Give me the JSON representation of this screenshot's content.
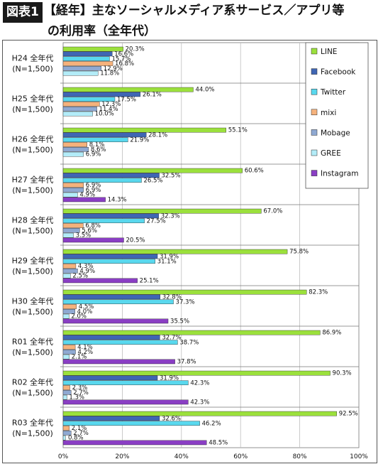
{
  "header": {
    "fig_tag": "図表1",
    "title_line1": "【経年】主なソーシャルメディア系サービス／アプリ等",
    "title_line2": "の利用率（全年代）"
  },
  "chart_data": {
    "type": "bar",
    "orientation": "horizontal",
    "categories": [
      {
        "year": "H24",
        "label": "H24 全年代",
        "n": "(N=1,500)"
      },
      {
        "year": "H25",
        "label": "H25 全年代",
        "n": "(N=1,500)"
      },
      {
        "year": "H26",
        "label": "H26 全年代",
        "n": "(N=1,500)"
      },
      {
        "year": "H27",
        "label": "H27 全年代",
        "n": "(N=1,500)"
      },
      {
        "year": "H28",
        "label": "H28 全年代",
        "n": "(N=1,500)"
      },
      {
        "year": "H29",
        "label": "H29 全年代",
        "n": "(N=1,500)"
      },
      {
        "year": "H30",
        "label": "H30 全年代",
        "n": "(N=1,500)"
      },
      {
        "year": "R01",
        "label": "R01 全年代",
        "n": "(N=1,500)"
      },
      {
        "year": "R02",
        "label": "R02 全年代",
        "n": "(N=1,500)"
      },
      {
        "year": "R03",
        "label": "R03 全年代",
        "n": "(N=1,500)"
      }
    ],
    "series": [
      {
        "name": "LINE",
        "color": "#9be03c",
        "values": [
          20.3,
          44.0,
          55.1,
          60.6,
          67.0,
          75.8,
          82.3,
          86.9,
          90.3,
          92.5
        ]
      },
      {
        "name": "Facebook",
        "color": "#3f66b4",
        "values": [
          16.6,
          26.1,
          28.1,
          32.5,
          32.3,
          31.9,
          32.8,
          32.7,
          31.9,
          32.6
        ]
      },
      {
        "name": "Twitter",
        "color": "#59d8ee",
        "values": [
          15.7,
          17.5,
          21.9,
          26.5,
          27.5,
          31.1,
          37.3,
          38.7,
          42.3,
          46.2
        ]
      },
      {
        "name": "mixi",
        "color": "#f5b27c",
        "values": [
          16.8,
          12.3,
          8.1,
          6.9,
          6.8,
          4.3,
          4.5,
          4.1,
          2.3,
          2.1
        ]
      },
      {
        "name": "Mobage",
        "color": "#8fa9d2",
        "values": [
          12.9,
          11.4,
          8.6,
          6.9,
          5.6,
          4.9,
          4.0,
          4.2,
          2.7,
          2.7
        ]
      },
      {
        "name": "GREE",
        "color": "#b3ecf8",
        "values": [
          11.8,
          10.0,
          6.9,
          4.9,
          3.5,
          2.5,
          2.0,
          2.1,
          1.3,
          0.8
        ]
      },
      {
        "name": "Instagram",
        "color": "#8a3ec4",
        "values": [
          null,
          null,
          null,
          14.3,
          20.5,
          25.1,
          35.5,
          37.8,
          42.3,
          48.5
        ]
      }
    ],
    "value_labels": [
      [
        "20.3%",
        "16.6%",
        "15.7%",
        "16.8%",
        "12.9%",
        "11.8%",
        ""
      ],
      [
        "44.0%",
        "26.1%",
        "17.5%",
        "12.3%",
        "11.4%",
        "10.0%",
        ""
      ],
      [
        "55.1%",
        "28.1%",
        "21.9%",
        "8.1%",
        "8.6%",
        "6.9%",
        ""
      ],
      [
        "60.6%",
        "32.5%",
        "26.5%",
        "6.9%",
        "6.9%",
        "4.9%",
        "14.3%"
      ],
      [
        "67.0%",
        "32.3%",
        "27.5%",
        "6.8%",
        "5.6%",
        "3.5%",
        "20.5%"
      ],
      [
        "75.8%",
        "31.9%",
        "31.1%",
        "4.3%",
        "4.9%",
        "2.5%",
        "25.1%"
      ],
      [
        "82.3%",
        "32.8%",
        "37.3%",
        "4.5%",
        "4.0%",
        "2.0%",
        "35.5%"
      ],
      [
        "86.9%",
        "32.7%",
        "38.7%",
        "4.1%",
        "4.2%",
        "2.1%",
        "37.8%"
      ],
      [
        "90.3%",
        "31.9%",
        "42.3%",
        "2.3%",
        "2.7%",
        "1.3%",
        "42.3%"
      ],
      [
        "92.5%",
        "32.6%",
        "46.2%",
        "2.1%",
        "2.7%",
        "0.8%",
        "48.5%"
      ]
    ],
    "xlim": [
      0,
      100
    ],
    "x_ticks": [
      "0%",
      "20%",
      "40%",
      "60%",
      "80%",
      "100%"
    ],
    "legend_position": "top-right",
    "grid": "vertical"
  }
}
